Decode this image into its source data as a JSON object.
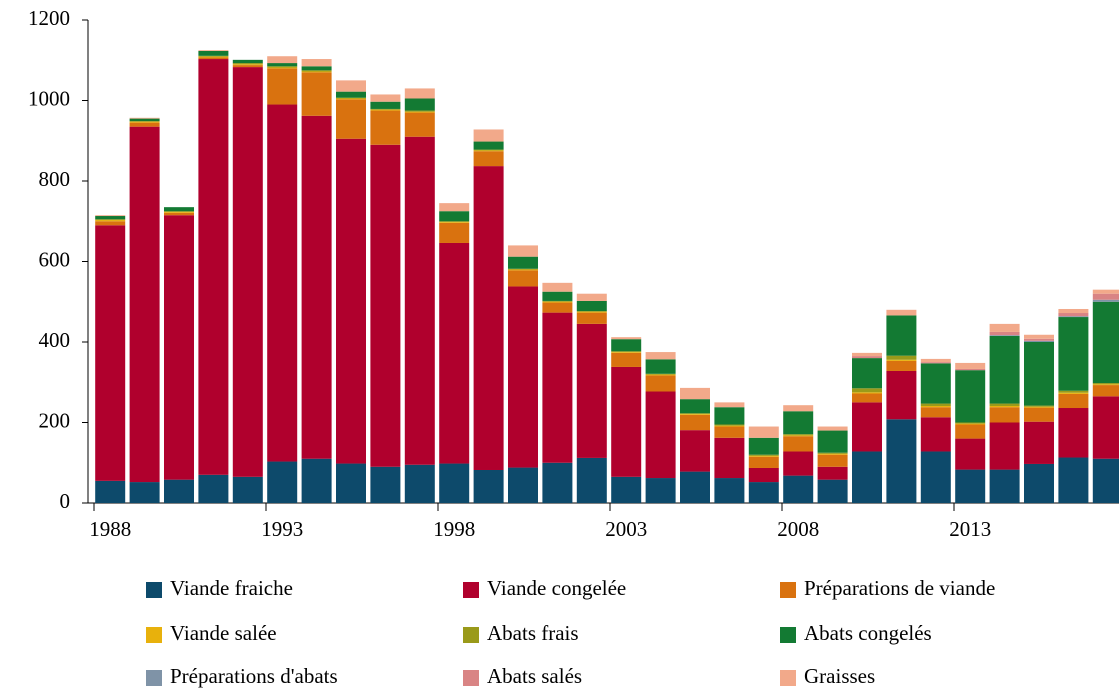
{
  "chart_data": {
    "type": "stacked_bar",
    "categories": [
      "1988",
      null,
      null,
      null,
      null,
      "1993",
      null,
      null,
      null,
      null,
      "1998",
      null,
      null,
      null,
      null,
      "2003",
      null,
      null,
      null,
      null,
      "2008",
      null,
      null,
      null,
      null,
      "2013",
      null,
      null,
      null,
      null
    ],
    "series": [
      {
        "name": "Viande fraiche",
        "color": "#0d4a6b",
        "values": [
          55,
          52,
          58,
          70,
          65,
          103,
          110,
          98,
          90,
          95,
          98,
          82,
          88,
          100,
          112,
          65,
          62,
          78,
          62,
          52,
          68,
          58,
          128,
          208,
          128,
          83,
          83,
          97,
          113,
          110
        ]
      },
      {
        "name": "Viande congelée",
        "color": "#b0002d",
        "values": [
          635,
          883,
          657,
          1033,
          1018,
          887,
          852,
          807,
          800,
          815,
          548,
          755,
          450,
          373,
          333,
          273,
          215,
          103,
          100,
          35,
          60,
          32,
          122,
          120,
          85,
          77,
          117,
          105,
          123,
          155
        ]
      },
      {
        "name": "Préparations de viande",
        "color": "#d9720f",
        "values": [
          10,
          10,
          6,
          4,
          5,
          90,
          108,
          98,
          85,
          60,
          50,
          37,
          40,
          25,
          28,
          35,
          40,
          38,
          28,
          28,
          38,
          30,
          22,
          25,
          25,
          35,
          38,
          35,
          35,
          28
        ]
      },
      {
        "name": "Viande salée",
        "color": "#e8b10c",
        "values": [
          3,
          2,
          2,
          2,
          2,
          2,
          2,
          2,
          2,
          2,
          2,
          2,
          2,
          2,
          2,
          2,
          2,
          2,
          2,
          2,
          2,
          2,
          3,
          3,
          3,
          2,
          3,
          2,
          3,
          2
        ]
      },
      {
        "name": "Abats frais",
        "color": "#9a9a1a",
        "values": [
          2,
          2,
          2,
          2,
          3,
          3,
          3,
          2,
          2,
          3,
          2,
          2,
          2,
          2,
          2,
          2,
          2,
          2,
          3,
          3,
          3,
          3,
          10,
          10,
          6,
          3,
          6,
          3,
          5,
          3
        ]
      },
      {
        "name": "Abats congelés",
        "color": "#137a33",
        "values": [
          8,
          6,
          10,
          12,
          8,
          8,
          10,
          15,
          18,
          30,
          25,
          20,
          30,
          23,
          25,
          30,
          36,
          35,
          43,
          42,
          57,
          55,
          75,
          100,
          100,
          130,
          168,
          158,
          183,
          202
        ]
      },
      {
        "name": "Préparations d'abats",
        "color": "#7f93a7",
        "values": [
          0,
          0,
          0,
          0,
          0,
          0,
          0,
          0,
          0,
          0,
          0,
          0,
          0,
          0,
          0,
          0,
          0,
          0,
          0,
          0,
          0,
          0,
          0,
          0,
          0,
          0,
          2,
          3,
          2,
          5
        ]
      },
      {
        "name": "Abats salés",
        "color": "#d98484",
        "values": [
          0,
          0,
          0,
          0,
          0,
          0,
          0,
          0,
          0,
          0,
          0,
          0,
          0,
          0,
          0,
          0,
          0,
          0,
          0,
          0,
          0,
          0,
          5,
          0,
          3,
          3,
          8,
          5,
          8,
          15
        ]
      },
      {
        "name": "Graisses",
        "color": "#f2a98a",
        "values": [
          2,
          2,
          0,
          2,
          0,
          17,
          18,
          28,
          18,
          25,
          20,
          30,
          28,
          22,
          18,
          5,
          18,
          28,
          12,
          28,
          15,
          10,
          8,
          14,
          8,
          15,
          20,
          10,
          10,
          10
        ]
      }
    ],
    "ylim": [
      0,
      1200
    ],
    "yticks": [
      0,
      200,
      400,
      600,
      800,
      1000,
      1200
    ]
  }
}
